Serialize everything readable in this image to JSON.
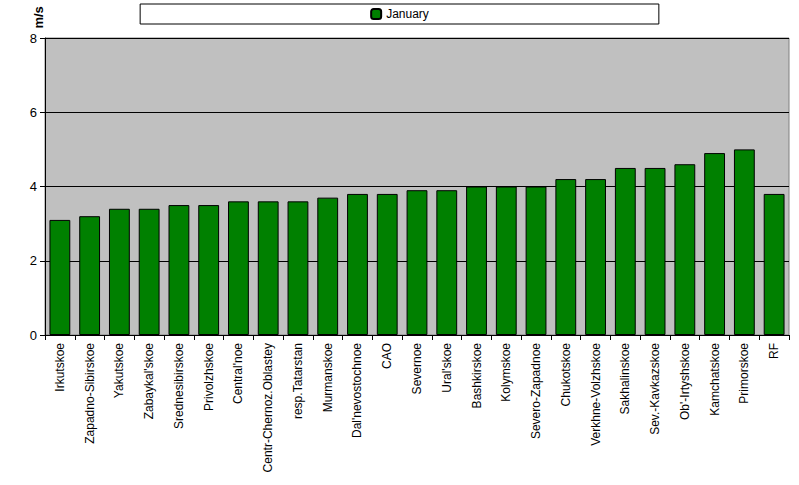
{
  "chart_data": {
    "type": "bar",
    "y_label": "m/s",
    "categories": [
      "Irkutskoe",
      "Zapadno-Sibirskoe",
      "Yakutskoe",
      "Zabaykal'skoe",
      "Srednesibirskoe",
      "Privolzhskoe",
      "Central'noe",
      "Centr-Chernoz.Oblastey",
      "resp.Tatarstan",
      "Murmanskoe",
      "Dal'nevostochnoe",
      "CAO",
      "Severnoe",
      "Ural'skoe",
      "Bashkirskoe",
      "Kolymskoe",
      "Severo-Zapadnoe",
      "Chukotskoe",
      "Verkhne-Volzhskoe",
      "Sakhalinskoe",
      "Sev.-Kavkazskoe",
      "Ob'-Irtyshskoe",
      "Kamchatskoe",
      "Primorskoe",
      "RF"
    ],
    "series": [
      {
        "name": "January",
        "color": "#008000",
        "values": [
          3.1,
          3.2,
          3.4,
          3.4,
          3.5,
          3.5,
          3.6,
          3.6,
          3.6,
          3.7,
          3.8,
          3.8,
          3.9,
          3.9,
          4.0,
          4.0,
          4.0,
          4.2,
          4.2,
          4.5,
          4.5,
          4.6,
          4.9,
          5.0,
          3.8
        ]
      }
    ],
    "ylim": [
      0,
      8
    ],
    "yticks": [
      0,
      2,
      4,
      6,
      8
    ],
    "grid": true,
    "legend": "top"
  }
}
